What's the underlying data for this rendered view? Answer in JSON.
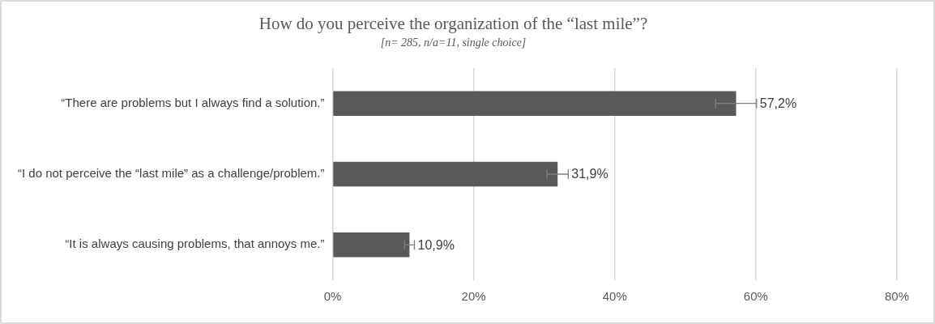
{
  "chart_data": {
    "type": "bar",
    "orientation": "horizontal",
    "title": "How do you perceive the organization of the “last mile”?",
    "subtitle": "[n= 285, n/a=11, single choice]",
    "categories": [
      "“There are problems but I always find a solution.”",
      "“I do not perceive the “last mile” as a challenge/problem.”",
      "“It is always causing problems, that annoys me.”"
    ],
    "values": [
      57.2,
      31.9,
      10.9
    ],
    "errors": [
      2.9,
      1.5,
      0.7
    ],
    "value_labels": [
      "57,2%",
      "31,9%",
      "10,9%"
    ],
    "color": "#595959",
    "xlim": [
      0,
      80
    ],
    "xticks": [
      {
        "value": 0,
        "label": "0%"
      },
      {
        "value": 20,
        "label": "20%"
      },
      {
        "value": 40,
        "label": "40%"
      },
      {
        "value": 60,
        "label": "60%"
      },
      {
        "value": 80,
        "label": "80%"
      }
    ],
    "grid": "x",
    "legend": false
  }
}
